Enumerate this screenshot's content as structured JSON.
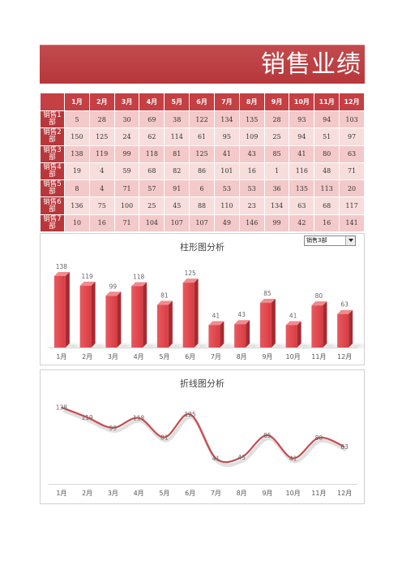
{
  "banner": {
    "title": "销售业绩"
  },
  "table": {
    "corner": "",
    "months": [
      "1月",
      "2月",
      "3月",
      "4月",
      "5月",
      "6月",
      "7月",
      "8月",
      "9月",
      "10月",
      "11月",
      "12月"
    ],
    "rows": [
      {
        "label": "销售1部",
        "values": [
          5,
          28,
          30,
          69,
          38,
          122,
          134,
          135,
          28,
          93,
          94,
          103
        ]
      },
      {
        "label": "销售2部",
        "values": [
          150,
          125,
          24,
          62,
          114,
          61,
          95,
          109,
          25,
          94,
          51,
          97
        ]
      },
      {
        "label": "销售3部",
        "values": [
          138,
          119,
          99,
          118,
          81,
          125,
          41,
          43,
          85,
          41,
          80,
          63
        ]
      },
      {
        "label": "销售4部",
        "values": [
          19,
          4,
          59,
          68,
          82,
          86,
          101,
          16,
          1,
          116,
          48,
          71
        ]
      },
      {
        "label": "销售5部",
        "values": [
          8,
          4,
          71,
          57,
          91,
          6,
          53,
          53,
          36,
          135,
          113,
          20
        ]
      },
      {
        "label": "销售6部",
        "values": [
          136,
          75,
          100,
          25,
          45,
          88,
          110,
          23,
          134,
          63,
          68,
          117
        ]
      },
      {
        "label": "销售7部",
        "values": [
          10,
          16,
          71,
          104,
          107,
          107,
          49,
          146,
          99,
          42,
          16,
          141
        ]
      }
    ]
  },
  "bar_panel": {
    "title": "柱形图分析",
    "dropdown_value": "销售3部"
  },
  "line_panel": {
    "title": "折线图分析"
  },
  "colors": {
    "accent": "#c0393e",
    "bar": "#e0484f",
    "line": "#c84a4e"
  },
  "chart_data": [
    {
      "type": "bar",
      "title": "柱形图分析",
      "categories": [
        "1月",
        "2月",
        "3月",
        "4月",
        "5月",
        "6月",
        "7月",
        "8月",
        "9月",
        "10月",
        "11月",
        "12月"
      ],
      "series": [
        {
          "name": "销售3部",
          "values": [
            138,
            119,
            99,
            118,
            81,
            125,
            41,
            43,
            85,
            41,
            80,
            63
          ]
        }
      ],
      "ylim": [
        0,
        150
      ],
      "grid": false
    },
    {
      "type": "line",
      "title": "折线图分析",
      "categories": [
        "1月",
        "2月",
        "3月",
        "4月",
        "5月",
        "6月",
        "7月",
        "8月",
        "9月",
        "10月",
        "11月",
        "12月"
      ],
      "series": [
        {
          "name": "销售3部",
          "values": [
            138,
            119,
            99,
            118,
            81,
            125,
            41,
            43,
            85,
            41,
            80,
            63
          ]
        }
      ],
      "ylim": [
        0,
        150
      ],
      "grid": false
    }
  ]
}
